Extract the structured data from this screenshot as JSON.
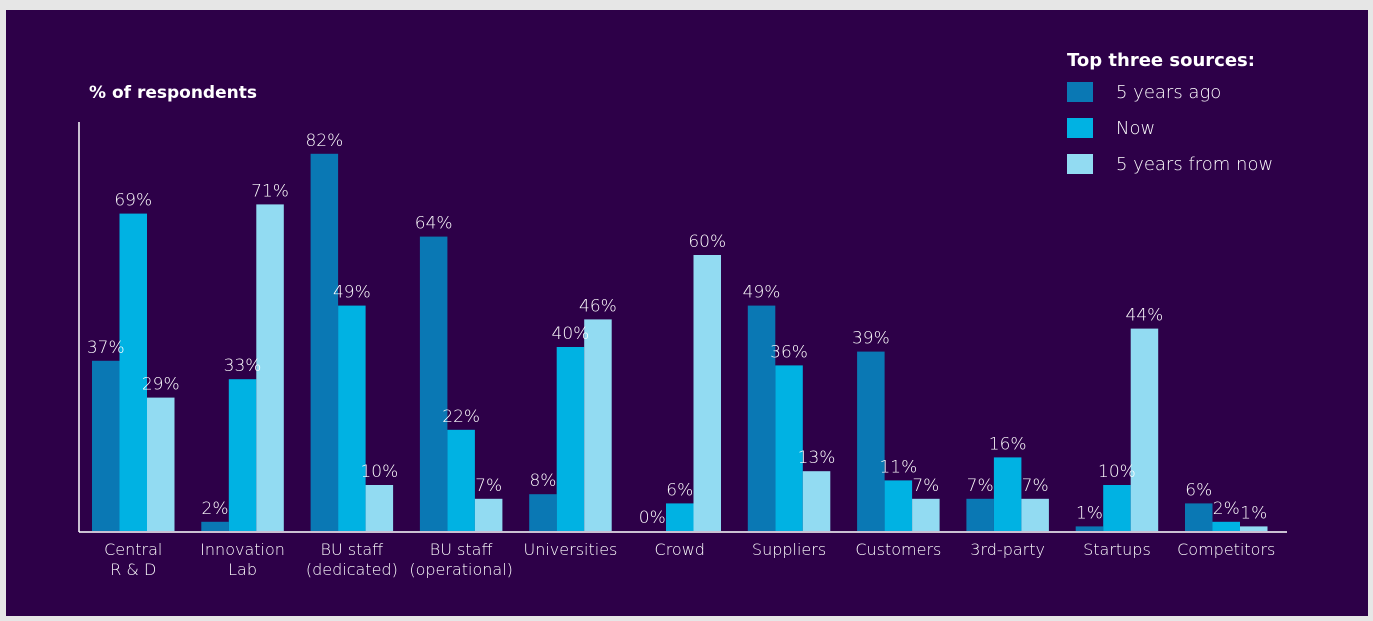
{
  "chart_data": {
    "type": "bar",
    "ylabel": "% of respondents",
    "ylim": [
      0,
      100
    ],
    "grid": false,
    "legend": {
      "title": "Top three sources:",
      "placement": "top-right"
    },
    "categories": [
      [
        "Central",
        "R & D"
      ],
      [
        "Innovation",
        "Lab"
      ],
      [
        "BU staff",
        "(dedicated)"
      ],
      [
        "BU staff",
        "(operational)"
      ],
      [
        "Universities"
      ],
      [
        "Crowd"
      ],
      [
        "Suppliers"
      ],
      [
        "Customers"
      ],
      [
        "3rd-party"
      ],
      [
        "Startups"
      ],
      [
        "Competitors"
      ]
    ],
    "series": [
      {
        "name": "5 years ago",
        "color": "#0a78b4",
        "values": [
          37,
          2,
          82,
          64,
          8,
          0,
          49,
          39,
          7,
          1,
          6
        ]
      },
      {
        "name": "Now",
        "color": "#00b2e3",
        "values": [
          69,
          33,
          49,
          22,
          40,
          6,
          36,
          11,
          16,
          10,
          2
        ]
      },
      {
        "name": "5 years from now",
        "color": "#92dbf2",
        "values": [
          29,
          71,
          10,
          7,
          46,
          60,
          13,
          7,
          7,
          44,
          1
        ]
      }
    ],
    "value_suffix": "%"
  }
}
